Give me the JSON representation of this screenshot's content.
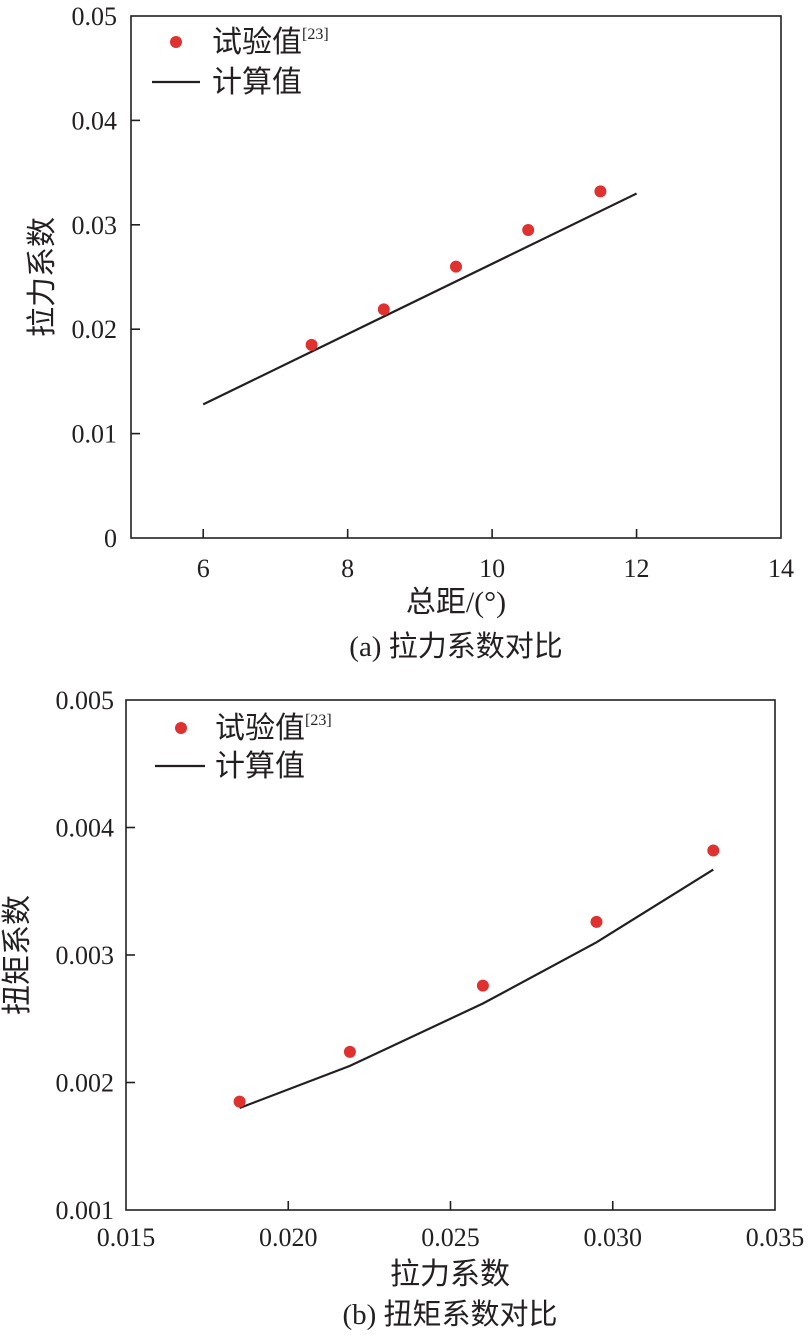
{
  "chart_data": [
    {
      "type": "scatter",
      "caption": "(a) 拉力系数对比",
      "xlabel": "总距/(°)",
      "ylabel": "拉力系数",
      "xlim": [
        5,
        14
      ],
      "ylim": [
        0,
        0.05
      ],
      "xticks": [
        6,
        8,
        10,
        12,
        14
      ],
      "xtick_labels": [
        "6",
        "8",
        "10",
        "12",
        "14"
      ],
      "yticks": [
        0,
        0.01,
        0.02,
        0.03,
        0.04,
        0.05
      ],
      "ytick_labels": [
        "0",
        "0.01",
        "0.02",
        "0.03",
        "0.04",
        "0.05"
      ],
      "legend": {
        "position": "top-left",
        "experimental_label": "试验值",
        "experimental_ref": "[23]",
        "computed_label": "计算值"
      },
      "series": [
        {
          "name": "试验值[23]",
          "kind": "points",
          "color": "#e03131",
          "x": [
            7.5,
            8.5,
            9.5,
            10.5,
            11.5
          ],
          "y": [
            0.0185,
            0.0219,
            0.026,
            0.0295,
            0.0332
          ]
        },
        {
          "name": "计算值",
          "kind": "line",
          "color": "#231f20",
          "x": [
            6,
            12
          ],
          "y": [
            0.0128,
            0.033
          ]
        }
      ]
    },
    {
      "type": "scatter",
      "caption": "(b) 扭矩系数对比",
      "xlabel": "拉力系数",
      "ylabel": "扭矩系数",
      "xlim": [
        0.015,
        0.035
      ],
      "ylim": [
        0.001,
        0.005
      ],
      "xticks": [
        0.015,
        0.02,
        0.025,
        0.03,
        0.035
      ],
      "xtick_labels": [
        "0.015",
        "0.020",
        "0.025",
        "0.030",
        "0.035"
      ],
      "yticks": [
        0.001,
        0.002,
        0.003,
        0.004,
        0.005
      ],
      "ytick_labels": [
        "0.001",
        "0.002",
        "0.003",
        "0.004",
        "0.005"
      ],
      "legend": {
        "position": "top-left",
        "experimental_label": "试验值",
        "experimental_ref": "[23]",
        "computed_label": "计算值"
      },
      "series": [
        {
          "name": "试验值[23]",
          "kind": "points",
          "color": "#e03131",
          "x": [
            0.0185,
            0.0219,
            0.026,
            0.0295,
            0.0331
          ],
          "y": [
            0.00185,
            0.00224,
            0.00276,
            0.00326,
            0.00382
          ]
        },
        {
          "name": "计算值",
          "kind": "line",
          "color": "#231f20",
          "x": [
            0.0185,
            0.0219,
            0.026,
            0.0295,
            0.0331
          ],
          "y": [
            0.0018,
            0.00213,
            0.00262,
            0.0031,
            0.00367
          ]
        }
      ]
    }
  ]
}
